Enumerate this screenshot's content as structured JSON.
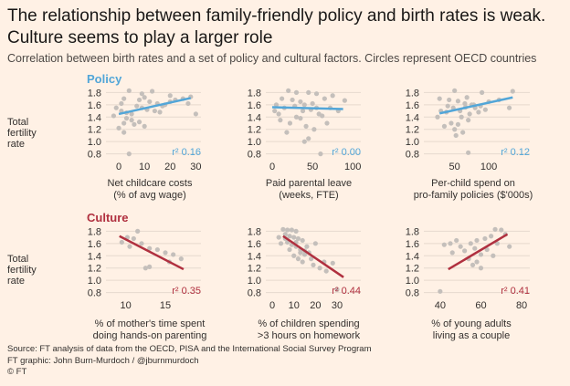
{
  "title_line1": "The relationship between family-friendly policy and birth rates is weak.",
  "title_line2": "Culture seems to play a larger role",
  "subtitle": "Correlation between birth rates and a set of policy and cultural factors. Circles represent OECD countries",
  "sections": {
    "policy": "Policy",
    "culture": "Culture"
  },
  "ylabel_row": [
    "Total",
    "fertility",
    "rate"
  ],
  "colors": {
    "background": "#fff1e5",
    "points": "#c4bfbb",
    "policy": "#52a6d8",
    "culture": "#b0303f"
  },
  "footer": {
    "source": "Source: FT analysis of data from the OECD, PISA and the International Social Survey Program",
    "credit": "FT graphic: John Burn-Murdoch / @jburnmurdoch",
    "copyright": "© FT"
  },
  "chart_data": [
    {
      "type": "scatter",
      "group": "Policy",
      "xlabel_lines": [
        "Net childcare costs",
        "(% of avg wage)"
      ],
      "xlim": [
        -5,
        32
      ],
      "xticks": [
        0,
        10,
        20,
        30
      ],
      "ylim": [
        0.75,
        1.85
      ],
      "yticks": [
        0.8,
        1.0,
        1.2,
        1.4,
        1.6,
        1.8
      ],
      "r2": "r² 0.16",
      "trend": [
        [
          0,
          1.45
        ],
        [
          28,
          1.71
        ]
      ],
      "points": [
        [
          4,
          1.83
        ],
        [
          13,
          1.82
        ],
        [
          2,
          1.7
        ],
        [
          8,
          1.68
        ],
        [
          10,
          1.72
        ],
        [
          12,
          1.65
        ],
        [
          15,
          1.62
        ],
        [
          18,
          1.6
        ],
        [
          20,
          1.75
        ],
        [
          22,
          1.68
        ],
        [
          25,
          1.7
        ],
        [
          28,
          1.73
        ],
        [
          -1,
          1.55
        ],
        [
          1,
          1.5
        ],
        [
          3,
          1.47
        ],
        [
          5,
          1.45
        ],
        [
          7,
          1.58
        ],
        [
          9,
          1.55
        ],
        [
          11,
          1.52
        ],
        [
          14,
          1.5
        ],
        [
          16,
          1.48
        ],
        [
          5,
          1.35
        ],
        [
          8,
          1.32
        ],
        [
          6,
          1.28
        ],
        [
          10,
          1.25
        ],
        [
          0,
          1.22
        ],
        [
          3,
          1.38
        ],
        [
          2,
          1.15
        ],
        [
          -2,
          1.42
        ],
        [
          27,
          1.62
        ],
        [
          30,
          1.45
        ],
        [
          2,
          1.3
        ],
        [
          17,
          1.58
        ],
        [
          1,
          1.62
        ],
        [
          9,
          1.78
        ],
        [
          20,
          1.65
        ],
        [
          4,
          0.8
        ]
      ]
    },
    {
      "type": "scatter",
      "group": "Policy",
      "xlabel_lines": [
        "Paid parental leave",
        "(weeks, FTE)"
      ],
      "xlim": [
        -8,
        110
      ],
      "xticks": [
        0,
        50,
        100
      ],
      "ylim": [
        0.75,
        1.85
      ],
      "yticks": [
        0.8,
        1.0,
        1.2,
        1.4,
        1.6,
        1.8
      ],
      "r2": "r² 0.00",
      "trend": [
        [
          0,
          1.56
        ],
        [
          88,
          1.53
        ]
      ],
      "points": [
        [
          20,
          1.83
        ],
        [
          30,
          1.8
        ],
        [
          45,
          1.8
        ],
        [
          55,
          1.78
        ],
        [
          12,
          1.7
        ],
        [
          25,
          1.68
        ],
        [
          35,
          1.65
        ],
        [
          50,
          1.62
        ],
        [
          65,
          1.7
        ],
        [
          90,
          1.67
        ],
        [
          5,
          1.6
        ],
        [
          15,
          1.55
        ],
        [
          28,
          1.58
        ],
        [
          38,
          1.5
        ],
        [
          48,
          1.52
        ],
        [
          58,
          1.45
        ],
        [
          72,
          1.55
        ],
        [
          82,
          1.5
        ],
        [
          10,
          1.35
        ],
        [
          22,
          1.3
        ],
        [
          42,
          1.25
        ],
        [
          52,
          1.2
        ],
        [
          62,
          1.42
        ],
        [
          35,
          1.38
        ],
        [
          18,
          1.15
        ],
        [
          45,
          1.05
        ],
        [
          3,
          1.5
        ],
        [
          40,
          1.6
        ],
        [
          75,
          1.75
        ],
        [
          8,
          1.45
        ],
        [
          30,
          1.4
        ],
        [
          68,
          1.3
        ],
        [
          55,
          1.55
        ],
        [
          40,
          1.0
        ],
        [
          60,
          0.8
        ]
      ]
    },
    {
      "type": "scatter",
      "group": "Policy",
      "xlabel_lines": [
        "Per-child spend on",
        "pro-family policies ($'000s)"
      ],
      "xlim": [
        5,
        160
      ],
      "xticks": [
        50,
        100
      ],
      "ylim": [
        0.75,
        1.85
      ],
      "yticks": [
        0.8,
        1.0,
        1.2,
        1.4,
        1.6,
        1.8
      ],
      "r2": "r² 0.12",
      "trend": [
        [
          28,
          1.46
        ],
        [
          135,
          1.72
        ]
      ],
      "points": [
        [
          50,
          1.83
        ],
        [
          90,
          1.8
        ],
        [
          135,
          1.82
        ],
        [
          28,
          1.7
        ],
        [
          42,
          1.68
        ],
        [
          55,
          1.66
        ],
        [
          68,
          1.72
        ],
        [
          78,
          1.6
        ],
        [
          65,
          1.62
        ],
        [
          100,
          1.65
        ],
        [
          115,
          1.68
        ],
        [
          130,
          1.55
        ],
        [
          30,
          1.5
        ],
        [
          38,
          1.48
        ],
        [
          48,
          1.55
        ],
        [
          58,
          1.5
        ],
        [
          72,
          1.45
        ],
        [
          85,
          1.48
        ],
        [
          95,
          1.52
        ],
        [
          60,
          1.4
        ],
        [
          70,
          1.35
        ],
        [
          45,
          1.3
        ],
        [
          55,
          1.28
        ],
        [
          35,
          1.25
        ],
        [
          50,
          1.2
        ],
        [
          62,
          1.15
        ],
        [
          75,
          1.6
        ],
        [
          80,
          1.55
        ],
        [
          25,
          1.4
        ],
        [
          88,
          1.58
        ],
        [
          40,
          1.58
        ],
        [
          52,
          1.1
        ],
        [
          66,
          1.56
        ],
        [
          70,
          0.82
        ]
      ]
    },
    {
      "type": "scatter",
      "group": "Culture",
      "xlabel_lines": [
        "% of mother's time spent",
        "doing hands-on parenting"
      ],
      "xlim": [
        7.5,
        19.5
      ],
      "xticks": [
        10,
        15
      ],
      "ylim": [
        0.75,
        1.85
      ],
      "yticks": [
        0.8,
        1.0,
        1.2,
        1.4,
        1.6,
        1.8
      ],
      "r2": "r² 0.35",
      "trend": [
        [
          9.2,
          1.72
        ],
        [
          17.3,
          1.18
        ]
      ],
      "points": [
        [
          11.5,
          1.8
        ],
        [
          9.5,
          1.62
        ],
        [
          10.2,
          1.7
        ],
        [
          11,
          1.68
        ],
        [
          12,
          1.6
        ],
        [
          13,
          1.52
        ],
        [
          14,
          1.5
        ],
        [
          15,
          1.45
        ],
        [
          16,
          1.42
        ],
        [
          17,
          1.35
        ],
        [
          12.5,
          1.2
        ],
        [
          13,
          1.22
        ],
        [
          15.5,
          1.3
        ],
        [
          10.5,
          1.55
        ]
      ]
    },
    {
      "type": "scatter",
      "group": "Culture",
      "xlabel_lines": [
        "% of children spending",
        ">3 hours on homework"
      ],
      "xlim": [
        -3,
        41
      ],
      "xticks": [
        0,
        10,
        20,
        30
      ],
      "ylim": [
        0.75,
        1.85
      ],
      "yticks": [
        0.8,
        1.0,
        1.2,
        1.4,
        1.6,
        1.8
      ],
      "r2": "r² 0.44",
      "trend": [
        [
          5,
          1.72
        ],
        [
          33,
          1.05
        ]
      ],
      "points": [
        [
          5,
          1.83
        ],
        [
          7,
          1.82
        ],
        [
          9,
          1.82
        ],
        [
          11,
          1.8
        ],
        [
          6,
          1.75
        ],
        [
          8,
          1.72
        ],
        [
          10,
          1.7
        ],
        [
          12,
          1.68
        ],
        [
          14,
          1.65
        ],
        [
          4,
          1.6
        ],
        [
          7,
          1.62
        ],
        [
          9,
          1.58
        ],
        [
          11,
          1.55
        ],
        [
          13,
          1.5
        ],
        [
          15,
          1.48
        ],
        [
          17,
          1.45
        ],
        [
          10,
          1.4
        ],
        [
          12,
          1.35
        ],
        [
          14,
          1.3
        ],
        [
          19,
          1.25
        ],
        [
          22,
          1.2
        ],
        [
          25,
          1.15
        ],
        [
          8,
          1.5
        ],
        [
          16,
          1.55
        ],
        [
          18,
          1.35
        ],
        [
          28,
          1.28
        ],
        [
          24,
          1.3
        ],
        [
          30,
          0.85
        ],
        [
          13,
          1.45
        ],
        [
          20,
          1.6
        ],
        [
          6,
          1.68
        ],
        [
          11,
          1.62
        ],
        [
          15,
          1.42
        ],
        [
          3,
          1.7
        ]
      ]
    },
    {
      "type": "scatter",
      "group": "Culture",
      "xlabel_lines": [
        "% of young adults",
        "living as a couple"
      ],
      "xlim": [
        32,
        84
      ],
      "xticks": [
        40,
        60,
        80
      ],
      "ylim": [
        0.75,
        1.85
      ],
      "yticks": [
        0.8,
        1.0,
        1.2,
        1.4,
        1.6,
        1.8
      ],
      "r2": "r² 0.41",
      "trend": [
        [
          44,
          1.18
        ],
        [
          73,
          1.75
        ]
      ],
      "points": [
        [
          40,
          0.82
        ],
        [
          42,
          1.58
        ],
        [
          46,
          1.45
        ],
        [
          50,
          1.55
        ],
        [
          52,
          1.48
        ],
        [
          55,
          1.6
        ],
        [
          57,
          1.52
        ],
        [
          60,
          1.42
        ],
        [
          62,
          1.68
        ],
        [
          65,
          1.72
        ],
        [
          67,
          1.83
        ],
        [
          70,
          1.82
        ],
        [
          72,
          1.75
        ],
        [
          74,
          1.55
        ],
        [
          58,
          1.65
        ],
        [
          54,
          1.35
        ],
        [
          48,
          1.65
        ],
        [
          63,
          1.5
        ],
        [
          60,
          1.2
        ],
        [
          68,
          1.6
        ],
        [
          56,
          1.25
        ],
        [
          45,
          1.6
        ],
        [
          58,
          1.3
        ],
        [
          66,
          1.4
        ]
      ]
    }
  ]
}
